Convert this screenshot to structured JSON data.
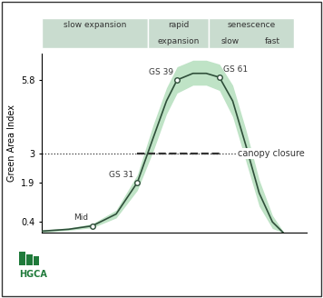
{
  "chart_data": {
    "type": "line",
    "y_label": "Green Area Index",
    "x": [
      0,
      10,
      19,
      28,
      36,
      42,
      47,
      51,
      57,
      62,
      67,
      72,
      77,
      82,
      87,
      91
    ],
    "values": [
      0.05,
      0.12,
      0.25,
      0.7,
      1.9,
      3.6,
      5.0,
      5.8,
      6.05,
      6.05,
      5.9,
      5.0,
      3.3,
      1.5,
      0.4,
      0.0
    ],
    "lower": [
      0.0,
      0.08,
      0.18,
      0.55,
      1.6,
      3.1,
      4.5,
      5.3,
      5.6,
      5.6,
      5.4,
      4.4,
      2.7,
      1.0,
      0.15,
      0.0
    ],
    "upper": [
      0.1,
      0.17,
      0.33,
      0.85,
      2.2,
      4.1,
      5.5,
      6.3,
      6.55,
      6.55,
      6.4,
      5.6,
      3.9,
      2.0,
      0.65,
      0.05
    ],
    "color": "#2f4f3a",
    "marker": "o",
    "points": [
      {
        "label": "Mid",
        "x": 19,
        "y": 0.25
      },
      {
        "label": "GS 31",
        "x": 36,
        "y": 1.9
      },
      {
        "label": "GS 39",
        "x": 51,
        "y": 5.8
      },
      {
        "label": "GS 61",
        "x": 67,
        "y": 5.9
      }
    ],
    "threshold": {
      "label": "canopy closure",
      "value": 3
    },
    "phases": [
      {
        "label": "slow expansion",
        "start": 0,
        "end": 40
      },
      {
        "label": "rapid expansion",
        "start": 40,
        "end": 63
      },
      {
        "label": "senescence",
        "start": 63,
        "end": 95,
        "sub": [
          "slow",
          "fast"
        ]
      }
    ],
    "logo": "HGCA",
    "xlim": [
      0,
      100
    ],
    "xticks": [],
    "ylim": [
      0,
      6.8
    ],
    "yticks": [
      0.4,
      1.9,
      3,
      5.8
    ],
    "tick_labels": "y"
  }
}
